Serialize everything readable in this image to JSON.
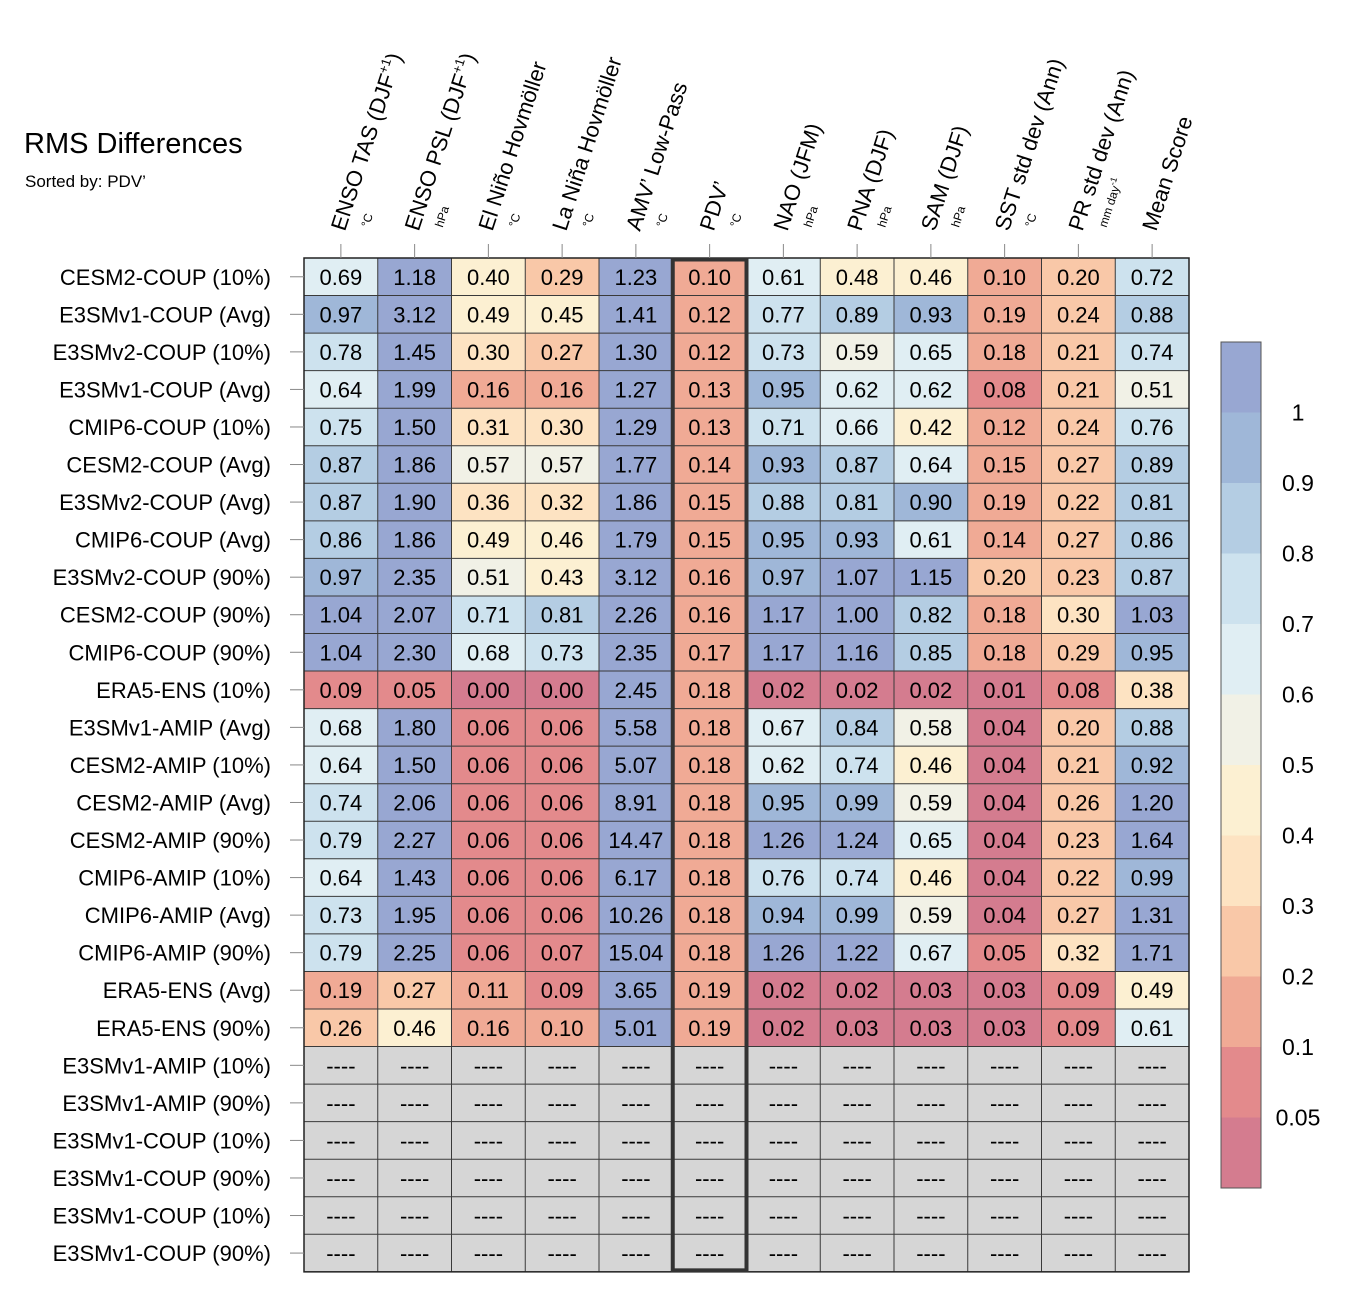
{
  "header": {
    "title": "RMS Differences",
    "subtitle": "Sorted by: PDV’"
  },
  "chart_data": {
    "type": "heatmap",
    "title": "RMS Differences",
    "subtitle": "Sorted by: PDV’",
    "sorted_by": "PDV’",
    "highlighted_column": 5,
    "columns": [
      {
        "name": "ENSO TAS (DJF",
        "sup": "+1",
        "close": ")",
        "unit": "°C"
      },
      {
        "name": "ENSO PSL (DJF",
        "sup": "+1",
        "close": ")",
        "unit": "hPa"
      },
      {
        "name": "El Niño Hovmöller",
        "unit": "°C"
      },
      {
        "name": "La Niña Hovmöller",
        "unit": "°C"
      },
      {
        "name": "AMV’ Low-Pass",
        "unit": "°C"
      },
      {
        "name": "PDV’",
        "unit": "°C"
      },
      {
        "name": "NAO (JFM)",
        "unit": "hPa"
      },
      {
        "name": "PNA (DJF)",
        "unit": "hPa"
      },
      {
        "name": "SAM (DJF)",
        "unit": "hPa"
      },
      {
        "name": "SST std dev (Ann)",
        "unit": "°C"
      },
      {
        "name": "PR std dev (Ann)",
        "unit": "mm day",
        "unit_sup": "-1"
      },
      {
        "name": "Mean Score",
        "unit": ""
      }
    ],
    "rows": [
      {
        "label": "CESM2-COUP (10%)",
        "values": [
          0.69,
          1.18,
          0.4,
          0.29,
          1.23,
          0.1,
          0.61,
          0.48,
          0.46,
          0.1,
          0.2,
          0.72
        ]
      },
      {
        "label": "E3SMv1-COUP (Avg)",
        "values": [
          0.97,
          3.12,
          0.49,
          0.45,
          1.41,
          0.12,
          0.77,
          0.89,
          0.93,
          0.19,
          0.24,
          0.88
        ]
      },
      {
        "label": "E3SMv2-COUP (10%)",
        "values": [
          0.78,
          1.45,
          0.3,
          0.27,
          1.3,
          0.12,
          0.73,
          0.59,
          0.65,
          0.18,
          0.21,
          0.74
        ]
      },
      {
        "label": "E3SMv1-COUP (Avg)",
        "values": [
          0.64,
          1.99,
          0.16,
          0.16,
          1.27,
          0.13,
          0.95,
          0.62,
          0.62,
          0.08,
          0.21,
          0.51
        ]
      },
      {
        "label": "CMIP6-COUP (10%)",
        "values": [
          0.75,
          1.5,
          0.31,
          0.3,
          1.29,
          0.13,
          0.71,
          0.66,
          0.42,
          0.12,
          0.24,
          0.76
        ]
      },
      {
        "label": "CESM2-COUP (Avg)",
        "values": [
          0.87,
          1.86,
          0.57,
          0.57,
          1.77,
          0.14,
          0.93,
          0.87,
          0.64,
          0.15,
          0.27,
          0.89
        ]
      },
      {
        "label": "E3SMv2-COUP (Avg)",
        "values": [
          0.87,
          1.9,
          0.36,
          0.32,
          1.86,
          0.15,
          0.88,
          0.81,
          0.9,
          0.19,
          0.22,
          0.81
        ]
      },
      {
        "label": "CMIP6-COUP (Avg)",
        "values": [
          0.86,
          1.86,
          0.49,
          0.46,
          1.79,
          0.15,
          0.95,
          0.93,
          0.61,
          0.14,
          0.27,
          0.86
        ]
      },
      {
        "label": "E3SMv2-COUP (90%)",
        "values": [
          0.97,
          2.35,
          0.51,
          0.43,
          3.12,
          0.16,
          0.97,
          1.07,
          1.15,
          0.2,
          0.23,
          0.87
        ]
      },
      {
        "label": "CESM2-COUP (90%)",
        "values": [
          1.04,
          2.07,
          0.71,
          0.81,
          2.26,
          0.16,
          1.17,
          1.0,
          0.82,
          0.18,
          0.3,
          1.03
        ]
      },
      {
        "label": "CMIP6-COUP (90%)",
        "values": [
          1.04,
          2.3,
          0.68,
          0.73,
          2.35,
          0.17,
          1.17,
          1.16,
          0.85,
          0.18,
          0.29,
          0.95
        ]
      },
      {
        "label": "ERA5-ENS (10%)",
        "values": [
          0.09,
          0.05,
          0.0,
          0.0,
          2.45,
          0.18,
          0.02,
          0.02,
          0.02,
          0.01,
          0.08,
          0.38
        ]
      },
      {
        "label": "E3SMv1-AMIP (Avg)",
        "values": [
          0.68,
          1.8,
          0.06,
          0.06,
          5.58,
          0.18,
          0.67,
          0.84,
          0.58,
          0.04,
          0.2,
          0.88
        ]
      },
      {
        "label": "CESM2-AMIP (10%)",
        "values": [
          0.64,
          1.5,
          0.06,
          0.06,
          5.07,
          0.18,
          0.62,
          0.74,
          0.46,
          0.04,
          0.21,
          0.92
        ]
      },
      {
        "label": "CESM2-AMIP (Avg)",
        "values": [
          0.74,
          2.06,
          0.06,
          0.06,
          8.91,
          0.18,
          0.95,
          0.99,
          0.59,
          0.04,
          0.26,
          1.2
        ]
      },
      {
        "label": "CESM2-AMIP (90%)",
        "values": [
          0.79,
          2.27,
          0.06,
          0.06,
          14.47,
          0.18,
          1.26,
          1.24,
          0.65,
          0.04,
          0.23,
          1.64
        ]
      },
      {
        "label": "CMIP6-AMIP (10%)",
        "values": [
          0.64,
          1.43,
          0.06,
          0.06,
          6.17,
          0.18,
          0.76,
          0.74,
          0.46,
          0.04,
          0.22,
          0.99
        ]
      },
      {
        "label": "CMIP6-AMIP (Avg)",
        "values": [
          0.73,
          1.95,
          0.06,
          0.06,
          10.26,
          0.18,
          0.94,
          0.99,
          0.59,
          0.04,
          0.27,
          1.31
        ]
      },
      {
        "label": "CMIP6-AMIP (90%)",
        "values": [
          0.79,
          2.25,
          0.06,
          0.07,
          15.04,
          0.18,
          1.26,
          1.22,
          0.67,
          0.05,
          0.32,
          1.71
        ]
      },
      {
        "label": "ERA5-ENS (Avg)",
        "values": [
          0.19,
          0.27,
          0.11,
          0.09,
          3.65,
          0.19,
          0.02,
          0.02,
          0.03,
          0.03,
          0.09,
          0.49
        ]
      },
      {
        "label": "ERA5-ENS (90%)",
        "values": [
          0.26,
          0.46,
          0.16,
          0.1,
          5.01,
          0.19,
          0.02,
          0.03,
          0.03,
          0.03,
          0.09,
          0.61
        ]
      },
      {
        "label": "E3SMv1-AMIP (10%)",
        "values": [
          null,
          null,
          null,
          null,
          null,
          null,
          null,
          null,
          null,
          null,
          null,
          null
        ]
      },
      {
        "label": "E3SMv1-AMIP (90%)",
        "values": [
          null,
          null,
          null,
          null,
          null,
          null,
          null,
          null,
          null,
          null,
          null,
          null
        ]
      },
      {
        "label": "E3SMv1-COUP (10%)",
        "values": [
          null,
          null,
          null,
          null,
          null,
          null,
          null,
          null,
          null,
          null,
          null,
          null
        ]
      },
      {
        "label": "E3SMv1-COUP (90%)",
        "values": [
          null,
          null,
          null,
          null,
          null,
          null,
          null,
          null,
          null,
          null,
          null,
          null
        ]
      },
      {
        "label": "E3SMv1-COUP (10%)",
        "values": [
          null,
          null,
          null,
          null,
          null,
          null,
          null,
          null,
          null,
          null,
          null,
          null
        ]
      },
      {
        "label": "E3SMv1-COUP (90%)",
        "values": [
          null,
          null,
          null,
          null,
          null,
          null,
          null,
          null,
          null,
          null,
          null,
          null
        ]
      }
    ],
    "missing_label": "----",
    "missing_color": "#d6d6d6",
    "colorbar": {
      "boundaries": [
        0.05,
        0.1,
        0.2,
        0.3,
        0.4,
        0.5,
        0.6,
        0.7,
        0.8,
        0.9,
        1
      ],
      "tick_labels": [
        "0.05",
        "0.1",
        "0.2",
        "0.3",
        "0.4",
        "0.5",
        "0.6",
        "0.7",
        "0.8",
        "0.9",
        "1"
      ],
      "colors": [
        "#d47c8f",
        "#e38a8c",
        "#f0aa95",
        "#f9c8a8",
        "#fde3c2",
        "#fcf0d2",
        "#f1f1e6",
        "#e0eef3",
        "#cde2ee",
        "#b4cde3",
        "#9fb7d8",
        "#98a7d2"
      ]
    }
  }
}
